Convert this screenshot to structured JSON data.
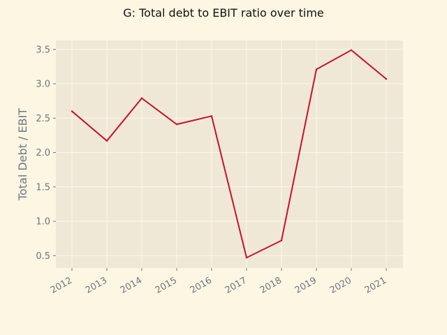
{
  "chart_data": {
    "type": "line",
    "title": "G: Total debt to EBIT ratio over time",
    "xlabel": "",
    "ylabel": "Total Debt / EBIT",
    "categories": [
      "2012",
      "2013",
      "2014",
      "2015",
      "2016",
      "2017",
      "2018",
      "2019",
      "2020",
      "2021"
    ],
    "series": [
      {
        "values": [
          2.6,
          2.17,
          2.79,
          2.41,
          2.53,
          0.47,
          0.72,
          3.21,
          3.49,
          3.07
        ],
        "color": "#c8102e"
      }
    ],
    "ylim": [
      0.32,
      3.63
    ],
    "yticks": [
      0.5,
      1.0,
      1.5,
      2.0,
      2.5,
      3.0,
      3.5
    ],
    "ytick_labels": [
      "0.5",
      "1.0",
      "1.5",
      "2.0",
      "2.5",
      "3.0",
      "3.5"
    ],
    "grid": true,
    "colors": {
      "background": "#fdf6e3",
      "plot_background": "#efe8d6",
      "grid": "#fbf8ef",
      "text": "#6b7780",
      "line": "#c8102e"
    }
  }
}
